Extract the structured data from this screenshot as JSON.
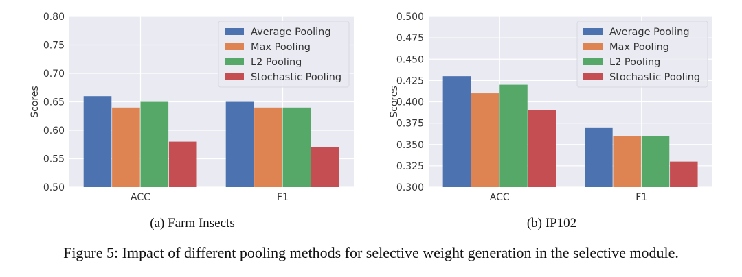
{
  "figure_caption": "Figure 5: Impact of different pooling methods for selective weight generation in the selective module.",
  "colors": {
    "plot_bg": "#eaeaf2",
    "grid": "#ffffff",
    "series": [
      "#4c72b0",
      "#dd8452",
      "#55a868",
      "#c44e52"
    ]
  },
  "chart_data": [
    {
      "type": "bar",
      "subcaption": "(a) Farm Insects",
      "ylabel": "Scores",
      "xlabel": "",
      "categories": [
        "ACC",
        "F1"
      ],
      "ylim": [
        0.5,
        0.8
      ],
      "yticks": [
        "0.50",
        "0.55",
        "0.60",
        "0.65",
        "0.70",
        "0.75",
        "0.80"
      ],
      "grid": true,
      "legend_position": "top-right",
      "series": [
        {
          "name": "Average Pooling",
          "values": [
            0.66,
            0.65
          ]
        },
        {
          "name": "Max Pooling",
          "values": [
            0.64,
            0.64
          ]
        },
        {
          "name": "L2 Pooling",
          "values": [
            0.65,
            0.64
          ]
        },
        {
          "name": "Stochastic Pooling",
          "values": [
            0.58,
            0.57
          ]
        }
      ]
    },
    {
      "type": "bar",
      "subcaption": "(b) IP102",
      "ylabel": "Scores",
      "xlabel": "",
      "categories": [
        "ACC",
        "F1"
      ],
      "ylim": [
        0.3,
        0.5
      ],
      "yticks": [
        "0.300",
        "0.325",
        "0.350",
        "0.375",
        "0.400",
        "0.425",
        "0.450",
        "0.475",
        "0.500"
      ],
      "grid": true,
      "legend_position": "top-right",
      "series": [
        {
          "name": "Average Pooling",
          "values": [
            0.43,
            0.37
          ]
        },
        {
          "name": "Max Pooling",
          "values": [
            0.41,
            0.36
          ]
        },
        {
          "name": "L2 Pooling",
          "values": [
            0.42,
            0.36
          ]
        },
        {
          "name": "Stochastic Pooling",
          "values": [
            0.39,
            0.33
          ]
        }
      ]
    }
  ]
}
